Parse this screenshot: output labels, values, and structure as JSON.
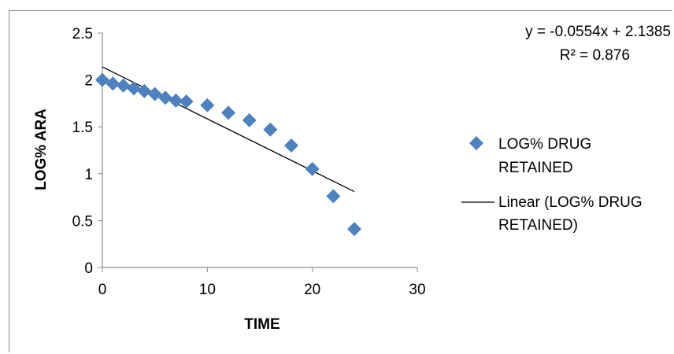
{
  "chart_data": {
    "type": "scatter",
    "xlabel": "TIME",
    "ylabel": "LOG% ARA",
    "xlim": [
      0,
      30
    ],
    "ylim": [
      0,
      2.5
    ],
    "xticks": [
      "0",
      "10",
      "20",
      "30"
    ],
    "yticks": [
      "0",
      "0.5",
      "1",
      "1.5",
      "2",
      "2.5"
    ],
    "grid": false,
    "legend_position": "right",
    "series": [
      {
        "name": "LOG% DRUG RETAINED",
        "marker": "diamond",
        "color": "#4f81bd",
        "x": [
          0,
          1,
          2,
          3,
          4,
          5,
          6,
          7,
          8,
          10,
          12,
          14,
          16,
          18,
          20,
          22,
          24
        ],
        "y": [
          2.0,
          1.96,
          1.94,
          1.91,
          1.88,
          1.85,
          1.81,
          1.78,
          1.77,
          1.73,
          1.65,
          1.57,
          1.47,
          1.3,
          1.05,
          0.76,
          0.41
        ]
      }
    ],
    "trendline": {
      "name": "Linear (LOG% DRUG RETAINED)",
      "type": "linear",
      "color": "#000000",
      "slope": -0.0554,
      "intercept": 2.1385,
      "x_range": [
        0,
        24
      ],
      "equation_text": "y = -0.0554x + 2.1385",
      "r2_text": "R² = 0.876"
    },
    "legend": [
      {
        "label_line1": "LOG% DRUG",
        "label_line2": "RETAINED"
      },
      {
        "label_line1": "Linear (LOG% DRUG",
        "label_line2": "RETAINED)"
      }
    ]
  }
}
